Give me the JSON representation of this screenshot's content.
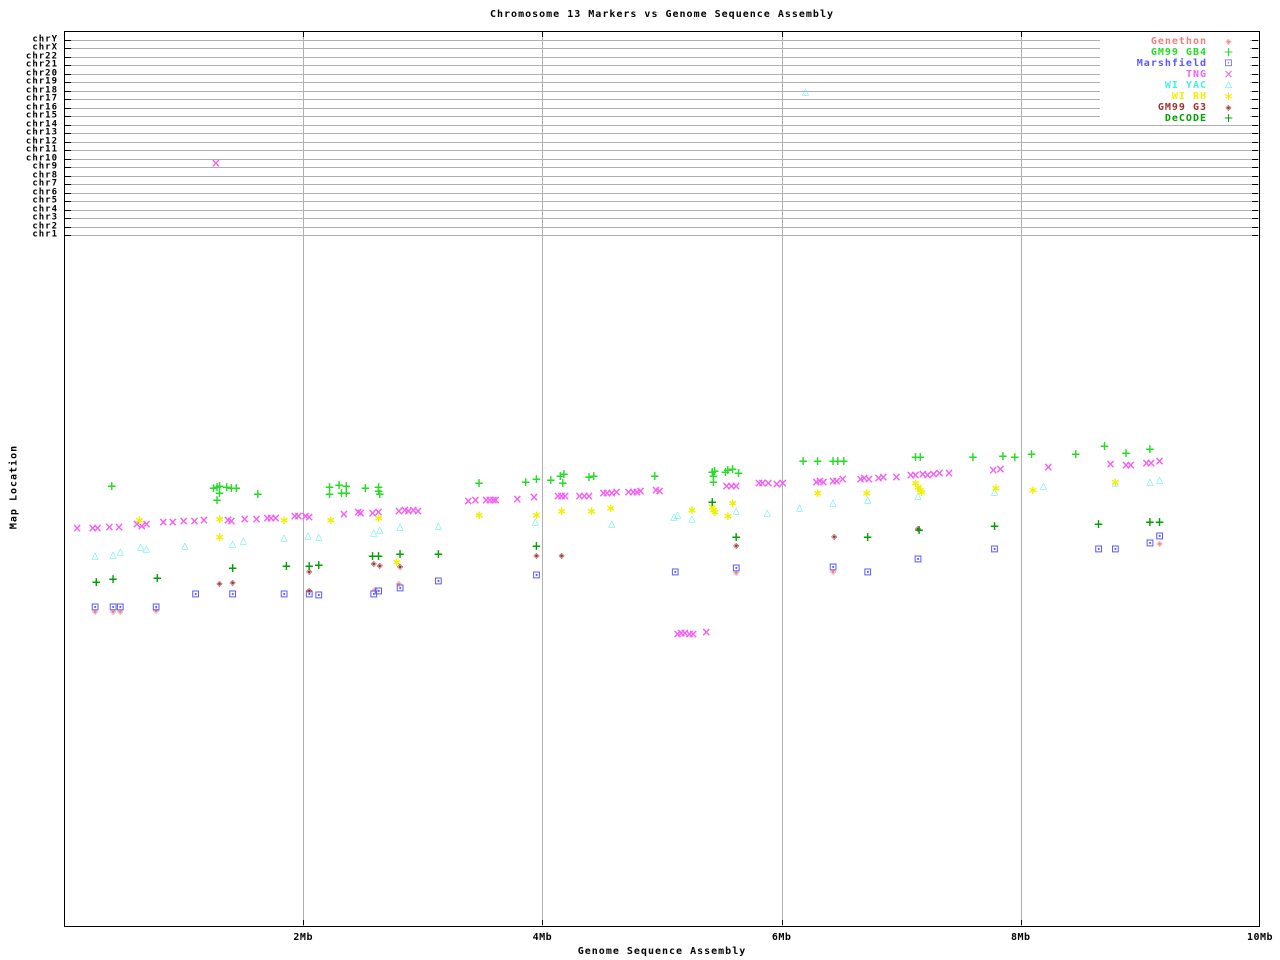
{
  "title": "Chromosome 13 Markers vs Genome Sequence Assembly",
  "axes": {
    "xlabel": "Genome Sequence Assembly",
    "ylabel": "Map Location",
    "x_ticks": [
      {
        "label": "2Mb",
        "mb": 2
      },
      {
        "label": "4Mb",
        "mb": 4
      },
      {
        "label": "6Mb",
        "mb": 6
      },
      {
        "label": "8Mb",
        "mb": 8
      },
      {
        "label": "10Mb",
        "mb": 10
      }
    ],
    "chromosomes": [
      "chrY",
      "chrX",
      "chr22",
      "chr21",
      "chr20",
      "chr19",
      "chr18",
      "chr17",
      "chr16",
      "chr15",
      "chr14",
      "chr13",
      "chr12",
      "chr11",
      "chr10",
      "chr9",
      "chr8",
      "chr7",
      "chr6",
      "chr5",
      "chr4",
      "chr3",
      "chr2",
      "chr1"
    ]
  },
  "legend_position": "top-right",
  "chart_data": {
    "type": "scatter",
    "title": "Chromosome 13 Markers vs Genome Sequence Assembly",
    "xlabel": "Genome Sequence Assembly",
    "ylabel": "Map Location",
    "x_unit": "Mb",
    "xlim": [
      0,
      10
    ],
    "grid": "gray gridlines: vertical at 2,4,6,8 Mb; horizontal lane per chromosome chrY..chr1 at top of plot",
    "y_axis_note": "Top band = chromosome assignment lanes (chrY..chr1). Lower band = each map's own location scale (no numeric ticks shown); point y given in screen px (plot top=31, bottom=927).",
    "chromosome_band_points": [
      {
        "series": "TNG",
        "mb": 1.27,
        "chromosome": "chr10"
      },
      {
        "series": "WI YAC",
        "mb": 6.2,
        "chromosome": "chr18"
      }
    ],
    "series": [
      {
        "key": "genethon",
        "name": "Genethon",
        "color": "#f08080",
        "marker": "diamond-dot",
        "points": [
          [
            0.26,
            612
          ],
          [
            0.41,
            612
          ],
          [
            0.47,
            612
          ],
          [
            0.77,
            611
          ],
          [
            2.6,
            590
          ],
          [
            2.8,
            584
          ],
          [
            5.62,
            573
          ],
          [
            6.43,
            572
          ],
          [
            9.16,
            544
          ]
        ]
      },
      {
        "key": "gm99gb4",
        "name": "GM99 GB4",
        "color": "#22dd22",
        "marker": "plus",
        "points": [
          [
            0.4,
            486
          ],
          [
            1.25,
            488
          ],
          [
            1.28,
            487
          ],
          [
            1.3,
            486
          ],
          [
            1.36,
            487
          ],
          [
            1.4,
            488
          ],
          [
            1.44,
            488
          ],
          [
            1.3,
            493
          ],
          [
            1.28,
            500
          ],
          [
            1.62,
            494
          ],
          [
            2.22,
            487
          ],
          [
            2.3,
            485
          ],
          [
            2.36,
            486
          ],
          [
            2.22,
            494
          ],
          [
            2.32,
            493
          ],
          [
            2.36,
            493
          ],
          [
            2.52,
            488
          ],
          [
            2.63,
            487
          ],
          [
            2.63,
            491
          ],
          [
            2.64,
            494
          ],
          [
            3.47,
            483
          ],
          [
            3.86,
            482
          ],
          [
            3.95,
            479
          ],
          [
            4.07,
            480
          ],
          [
            4.15,
            476
          ],
          [
            4.18,
            474
          ],
          [
            4.17,
            483
          ],
          [
            4.39,
            477
          ],
          [
            4.43,
            476
          ],
          [
            4.94,
            476
          ],
          [
            5.42,
            472
          ],
          [
            5.44,
            471
          ],
          [
            5.43,
            476
          ],
          [
            5.43,
            482
          ],
          [
            5.53,
            472
          ],
          [
            5.55,
            470
          ],
          [
            5.59,
            469
          ],
          [
            5.64,
            473
          ],
          [
            6.18,
            461
          ],
          [
            6.3,
            461
          ],
          [
            6.43,
            461
          ],
          [
            6.47,
            461
          ],
          [
            6.52,
            461
          ],
          [
            7.12,
            457
          ],
          [
            7.16,
            457
          ],
          [
            7.6,
            457
          ],
          [
            7.85,
            456
          ],
          [
            7.95,
            457
          ],
          [
            8.09,
            454
          ],
          [
            8.46,
            454
          ],
          [
            8.7,
            446
          ],
          [
            8.88,
            453
          ],
          [
            9.08,
            449
          ]
        ]
      },
      {
        "key": "marshfield",
        "name": "Marshfield",
        "color": "#5858ff",
        "marker": "square-dot",
        "points": [
          [
            0.26,
            608
          ],
          [
            0.41,
            608
          ],
          [
            0.47,
            608
          ],
          [
            0.77,
            608
          ],
          [
            1.1,
            595
          ],
          [
            1.41,
            595
          ],
          [
            1.84,
            595
          ],
          [
            2.05,
            595
          ],
          [
            2.13,
            596
          ],
          [
            2.59,
            595
          ],
          [
            2.63,
            592
          ],
          [
            2.81,
            589
          ],
          [
            3.13,
            582
          ],
          [
            3.95,
            576
          ],
          [
            5.11,
            573
          ],
          [
            5.62,
            569
          ],
          [
            6.43,
            568
          ],
          [
            6.72,
            573
          ],
          [
            7.14,
            560
          ],
          [
            7.78,
            550
          ],
          [
            8.65,
            550
          ],
          [
            8.79,
            550
          ],
          [
            9.08,
            544
          ],
          [
            9.16,
            537
          ]
        ]
      },
      {
        "key": "tng",
        "name": "TNG",
        "color": "#f45ff4",
        "marker": "cross",
        "points": [
          [
            0.11,
            528
          ],
          [
            0.24,
            528
          ],
          [
            0.28,
            528
          ],
          [
            0.38,
            527
          ],
          [
            0.46,
            527
          ],
          [
            0.61,
            524
          ],
          [
            0.65,
            526
          ],
          [
            0.69,
            524
          ],
          [
            0.83,
            522
          ],
          [
            0.91,
            522
          ],
          [
            1.0,
            521
          ],
          [
            1.09,
            521
          ],
          [
            1.17,
            520
          ],
          [
            1.37,
            520
          ],
          [
            1.4,
            521
          ],
          [
            1.51,
            519
          ],
          [
            1.61,
            519
          ],
          [
            1.7,
            518
          ],
          [
            1.73,
            518
          ],
          [
            1.77,
            518
          ],
          [
            1.93,
            516
          ],
          [
            1.96,
            516
          ],
          [
            2.02,
            516
          ],
          [
            2.05,
            517
          ],
          [
            2.34,
            514
          ],
          [
            2.46,
            512
          ],
          [
            2.48,
            513
          ],
          [
            2.58,
            513
          ],
          [
            2.63,
            512
          ],
          [
            2.8,
            511
          ],
          [
            2.85,
            510
          ],
          [
            2.88,
            511
          ],
          [
            2.92,
            510
          ],
          [
            2.96,
            511
          ],
          [
            3.38,
            501
          ],
          [
            3.44,
            500
          ],
          [
            3.53,
            500
          ],
          [
            3.56,
            500
          ],
          [
            3.59,
            500
          ],
          [
            3.61,
            500
          ],
          [
            3.79,
            499
          ],
          [
            3.93,
            497
          ],
          [
            4.13,
            496
          ],
          [
            4.16,
            496
          ],
          [
            4.19,
            496
          ],
          [
            4.31,
            496
          ],
          [
            4.35,
            496
          ],
          [
            4.39,
            496
          ],
          [
            4.51,
            493
          ],
          [
            4.54,
            493
          ],
          [
            4.58,
            493
          ],
          [
            4.62,
            492
          ],
          [
            4.72,
            492
          ],
          [
            4.76,
            492
          ],
          [
            4.79,
            492
          ],
          [
            4.82,
            491
          ],
          [
            4.95,
            490
          ],
          [
            4.98,
            491
          ],
          [
            5.54,
            486
          ],
          [
            5.58,
            486
          ],
          [
            5.62,
            486
          ],
          [
            5.81,
            483
          ],
          [
            5.84,
            483
          ],
          [
            5.89,
            483
          ],
          [
            5.96,
            484
          ],
          [
            6.01,
            483
          ],
          [
            6.29,
            482
          ],
          [
            6.32,
            481
          ],
          [
            6.35,
            482
          ],
          [
            6.43,
            481
          ],
          [
            6.46,
            481
          ],
          [
            6.51,
            479
          ],
          [
            6.66,
            479
          ],
          [
            6.69,
            478
          ],
          [
            6.73,
            479
          ],
          [
            6.81,
            478
          ],
          [
            6.85,
            477
          ],
          [
            6.96,
            477
          ],
          [
            7.08,
            475
          ],
          [
            7.12,
            475
          ],
          [
            7.18,
            474
          ],
          [
            7.22,
            475
          ],
          [
            7.27,
            474
          ],
          [
            7.32,
            473
          ],
          [
            7.4,
            473
          ],
          [
            7.77,
            470
          ],
          [
            7.83,
            469
          ],
          [
            8.23,
            467
          ],
          [
            8.75,
            464
          ],
          [
            8.88,
            465
          ],
          [
            8.92,
            465
          ],
          [
            9.05,
            463
          ],
          [
            9.09,
            463
          ],
          [
            9.16,
            461
          ],
          [
            1.27,
            163
          ],
          [
            5.13,
            634
          ],
          [
            5.16,
            633
          ],
          [
            5.19,
            633
          ],
          [
            5.23,
            634
          ],
          [
            5.26,
            634
          ],
          [
            5.37,
            632
          ]
        ]
      },
      {
        "key": "wiyac",
        "name": "WI YAC",
        "color": "#44eeee",
        "marker": "triangle",
        "points": [
          [
            0.26,
            557
          ],
          [
            0.41,
            556
          ],
          [
            0.47,
            553
          ],
          [
            0.64,
            548
          ],
          [
            0.69,
            550
          ],
          [
            1.01,
            547
          ],
          [
            1.41,
            545
          ],
          [
            1.5,
            542
          ],
          [
            1.84,
            539
          ],
          [
            2.04,
            537
          ],
          [
            2.13,
            538
          ],
          [
            2.59,
            534
          ],
          [
            2.64,
            531
          ],
          [
            2.81,
            528
          ],
          [
            3.13,
            527
          ],
          [
            3.94,
            523
          ],
          [
            4.58,
            525
          ],
          [
            5.1,
            518
          ],
          [
            5.13,
            516
          ],
          [
            5.25,
            520
          ],
          [
            5.62,
            512
          ],
          [
            5.88,
            514
          ],
          [
            6.15,
            509
          ],
          [
            6.43,
            504
          ],
          [
            6.72,
            501
          ],
          [
            7.14,
            497
          ],
          [
            7.78,
            493
          ],
          [
            8.19,
            487
          ],
          [
            8.79,
            484
          ],
          [
            9.08,
            483
          ],
          [
            9.16,
            481
          ],
          [
            6.2,
            93
          ]
        ]
      },
      {
        "key": "wirh",
        "name": "WI RH",
        "color": "#f0f000",
        "marker": "asterisk",
        "points": [
          [
            0.63,
            520
          ],
          [
            1.3,
            519
          ],
          [
            1.3,
            537
          ],
          [
            1.84,
            520
          ],
          [
            2.23,
            520
          ],
          [
            2.63,
            518
          ],
          [
            2.78,
            562
          ],
          [
            3.47,
            515
          ],
          [
            3.95,
            515
          ],
          [
            4.16,
            511
          ],
          [
            4.41,
            511
          ],
          [
            4.57,
            508
          ],
          [
            5.25,
            510
          ],
          [
            5.42,
            507
          ],
          [
            5.43,
            510
          ],
          [
            5.44,
            512
          ],
          [
            5.55,
            516
          ],
          [
            5.59,
            503
          ],
          [
            6.3,
            493
          ],
          [
            6.71,
            493
          ],
          [
            7.12,
            483
          ],
          [
            7.14,
            487
          ],
          [
            7.16,
            490
          ],
          [
            7.17,
            492
          ],
          [
            7.79,
            488
          ],
          [
            8.1,
            490
          ],
          [
            8.79,
            482
          ]
        ]
      },
      {
        "key": "gm99g3",
        "name": "GM99 G3",
        "color": "#a03030",
        "marker": "diamond-dot",
        "points": [
          [
            1.3,
            584
          ],
          [
            1.41,
            583
          ],
          [
            2.05,
            572
          ],
          [
            2.05,
            591
          ],
          [
            2.59,
            564
          ],
          [
            2.64,
            566
          ],
          [
            2.81,
            567
          ],
          [
            3.95,
            556
          ],
          [
            4.16,
            556
          ],
          [
            5.62,
            546
          ],
          [
            6.44,
            537
          ],
          [
            7.14,
            529
          ]
        ]
      },
      {
        "key": "decode",
        "name": "DeCODE",
        "color": "#00a000",
        "marker": "plus",
        "points": [
          [
            0.27,
            582
          ],
          [
            0.41,
            579
          ],
          [
            0.78,
            578
          ],
          [
            1.41,
            568
          ],
          [
            1.86,
            566
          ],
          [
            2.05,
            566
          ],
          [
            2.13,
            565
          ],
          [
            2.58,
            556
          ],
          [
            2.63,
            556
          ],
          [
            2.81,
            554
          ],
          [
            3.13,
            554
          ],
          [
            3.95,
            546
          ],
          [
            5.42,
            502
          ],
          [
            5.62,
            537
          ],
          [
            6.72,
            537
          ],
          [
            7.15,
            530
          ],
          [
            7.78,
            526
          ],
          [
            8.65,
            524
          ],
          [
            9.08,
            522
          ],
          [
            9.16,
            522
          ]
        ]
      }
    ]
  }
}
